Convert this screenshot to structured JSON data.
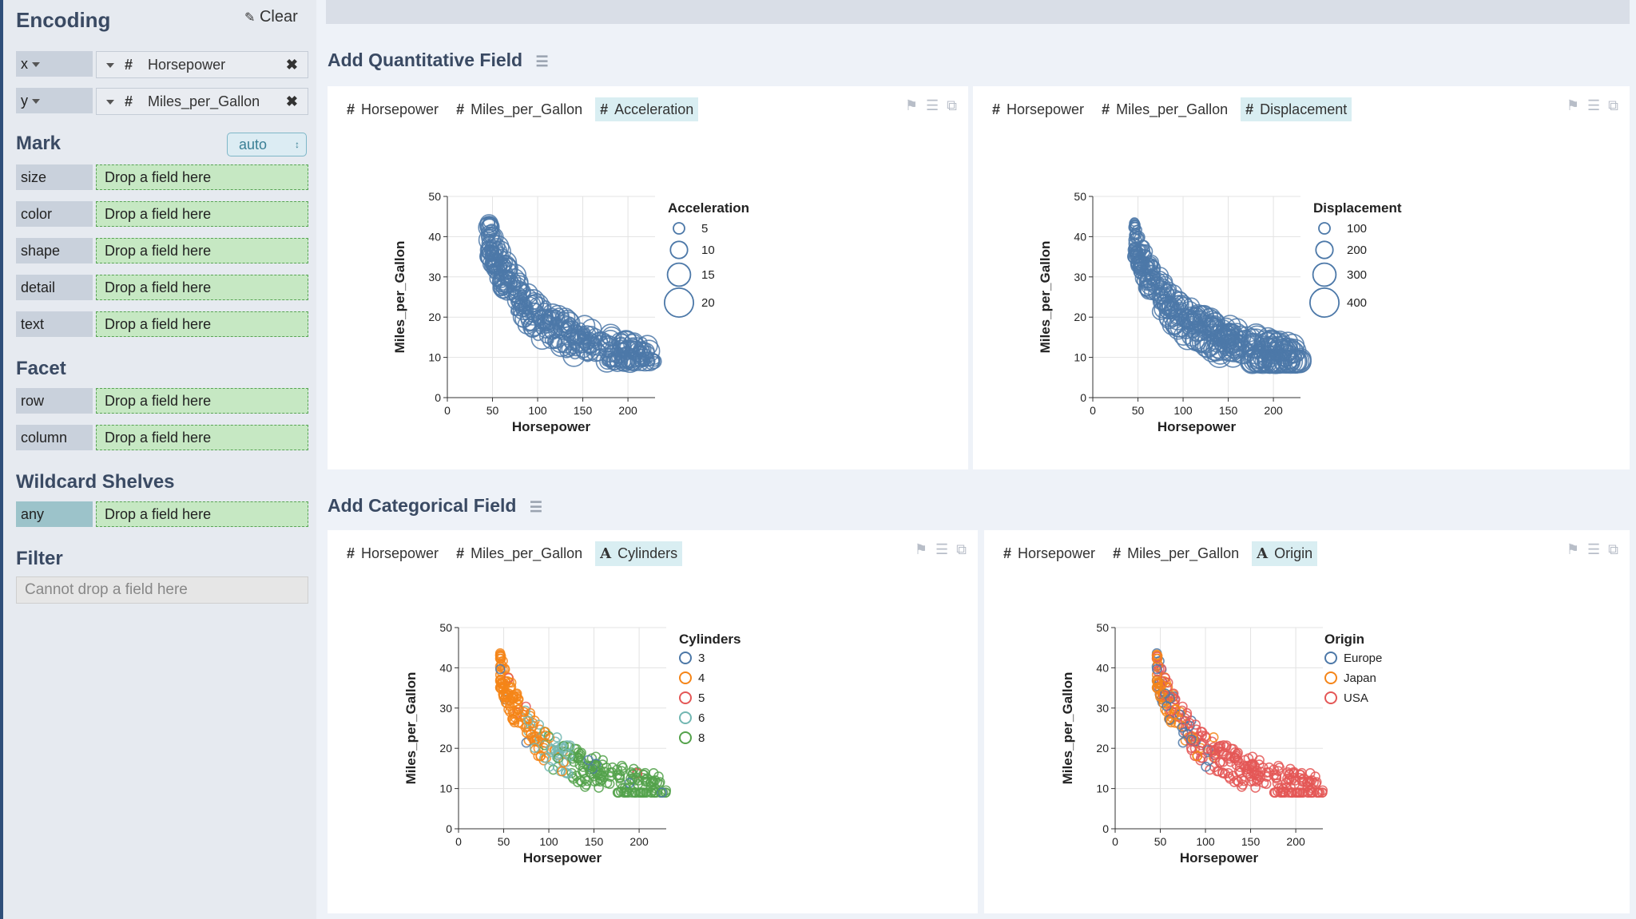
{
  "sidebar": {
    "encoding_title": "Encoding",
    "clear_label": "Clear",
    "encodings": [
      {
        "channel": "x",
        "field": "Horsepower",
        "type_icon": "#"
      },
      {
        "channel": "y",
        "field": "Miles_per_Gallon",
        "type_icon": "#"
      }
    ],
    "mark_title": "Mark",
    "mark_value": "auto",
    "mark_shelves": [
      {
        "channel": "size",
        "placeholder": "Drop a field here"
      },
      {
        "channel": "color",
        "placeholder": "Drop a field here"
      },
      {
        "channel": "shape",
        "placeholder": "Drop a field here"
      },
      {
        "channel": "detail",
        "placeholder": "Drop a field here"
      },
      {
        "channel": "text",
        "placeholder": "Drop a field here"
      }
    ],
    "facet_title": "Facet",
    "facet_shelves": [
      {
        "channel": "row",
        "placeholder": "Drop a field here"
      },
      {
        "channel": "column",
        "placeholder": "Drop a field here"
      }
    ],
    "wildcard_title": "Wildcard Shelves",
    "wildcard_shelf": {
      "channel": "any",
      "placeholder": "Drop a field here"
    },
    "filter_title": "Filter",
    "filter_placeholder": "Cannot drop a field here"
  },
  "sections": [
    {
      "title": "Add Quantitative Field"
    },
    {
      "title": "Add Categorical Field"
    }
  ],
  "panels": [
    {
      "fields": [
        "Horsepower",
        "Miles_per_Gallon"
      ],
      "extra_field": "Acceleration",
      "extra_type": "#"
    },
    {
      "fields": [
        "Horsepower",
        "Miles_per_Gallon"
      ],
      "extra_field": "Displacement",
      "extra_type": "#"
    },
    {
      "fields": [
        "Horsepower",
        "Miles_per_Gallon"
      ],
      "extra_field": "Cylinders",
      "extra_type": "A"
    },
    {
      "fields": [
        "Horsepower",
        "Miles_per_Gallon"
      ],
      "extra_field": "Origin",
      "extra_type": "A"
    }
  ],
  "colors": {
    "sidebar_bg": "#e6eaf0",
    "drop_zone": "#c6e8c3",
    "point_blue": "#4c78a8",
    "highlight_token": "#d9eef2"
  },
  "chart_data": [
    {
      "type": "scatter",
      "xlabel": "Horsepower",
      "ylabel": "Miles_per_Gallon",
      "xlim": [
        0,
        230
      ],
      "ylim": [
        0,
        50
      ],
      "xticks": [
        0,
        50,
        100,
        150,
        200
      ],
      "yticks": [
        0,
        10,
        20,
        30,
        40,
        50
      ],
      "legend": {
        "title": "Acceleration",
        "position": "right",
        "entries": [
          "5",
          "10",
          "15",
          "20"
        ]
      },
      "size_field": "Acceleration"
    },
    {
      "type": "scatter",
      "xlabel": "Horsepower",
      "ylabel": "Miles_per_Gallon",
      "xlim": [
        0,
        230
      ],
      "ylim": [
        0,
        50
      ],
      "xticks": [
        0,
        50,
        100,
        150,
        200
      ],
      "yticks": [
        0,
        10,
        20,
        30,
        40,
        50
      ],
      "legend": {
        "title": "Displacement",
        "position": "right",
        "entries": [
          "100",
          "200",
          "300",
          "400"
        ]
      },
      "size_field": "Displacement"
    },
    {
      "type": "scatter",
      "xlabel": "Horsepower",
      "ylabel": "Miles_per_Gallon",
      "xlim": [
        0,
        230
      ],
      "ylim": [
        0,
        50
      ],
      "xticks": [
        0,
        50,
        100,
        150,
        200
      ],
      "yticks": [
        0,
        10,
        20,
        30,
        40,
        50
      ],
      "legend": {
        "title": "Cylinders",
        "position": "right",
        "entries": [
          "3",
          "4",
          "5",
          "6",
          "8"
        ],
        "colors": [
          "#4c78a8",
          "#f58518",
          "#e45756",
          "#72b7b2",
          "#54a24b"
        ]
      },
      "color_field": "Cylinders"
    },
    {
      "type": "scatter",
      "xlabel": "Horsepower",
      "ylabel": "Miles_per_Gallon",
      "xlim": [
        0,
        230
      ],
      "ylim": [
        0,
        50
      ],
      "xticks": [
        0,
        50,
        100,
        150,
        200
      ],
      "yticks": [
        0,
        10,
        20,
        30,
        40,
        50
      ],
      "legend": {
        "title": "Origin",
        "position": "right",
        "entries": [
          "Europe",
          "Japan",
          "USA"
        ],
        "colors": [
          "#4c78a8",
          "#f58518",
          "#e45756"
        ]
      },
      "color_field": "Origin"
    }
  ]
}
